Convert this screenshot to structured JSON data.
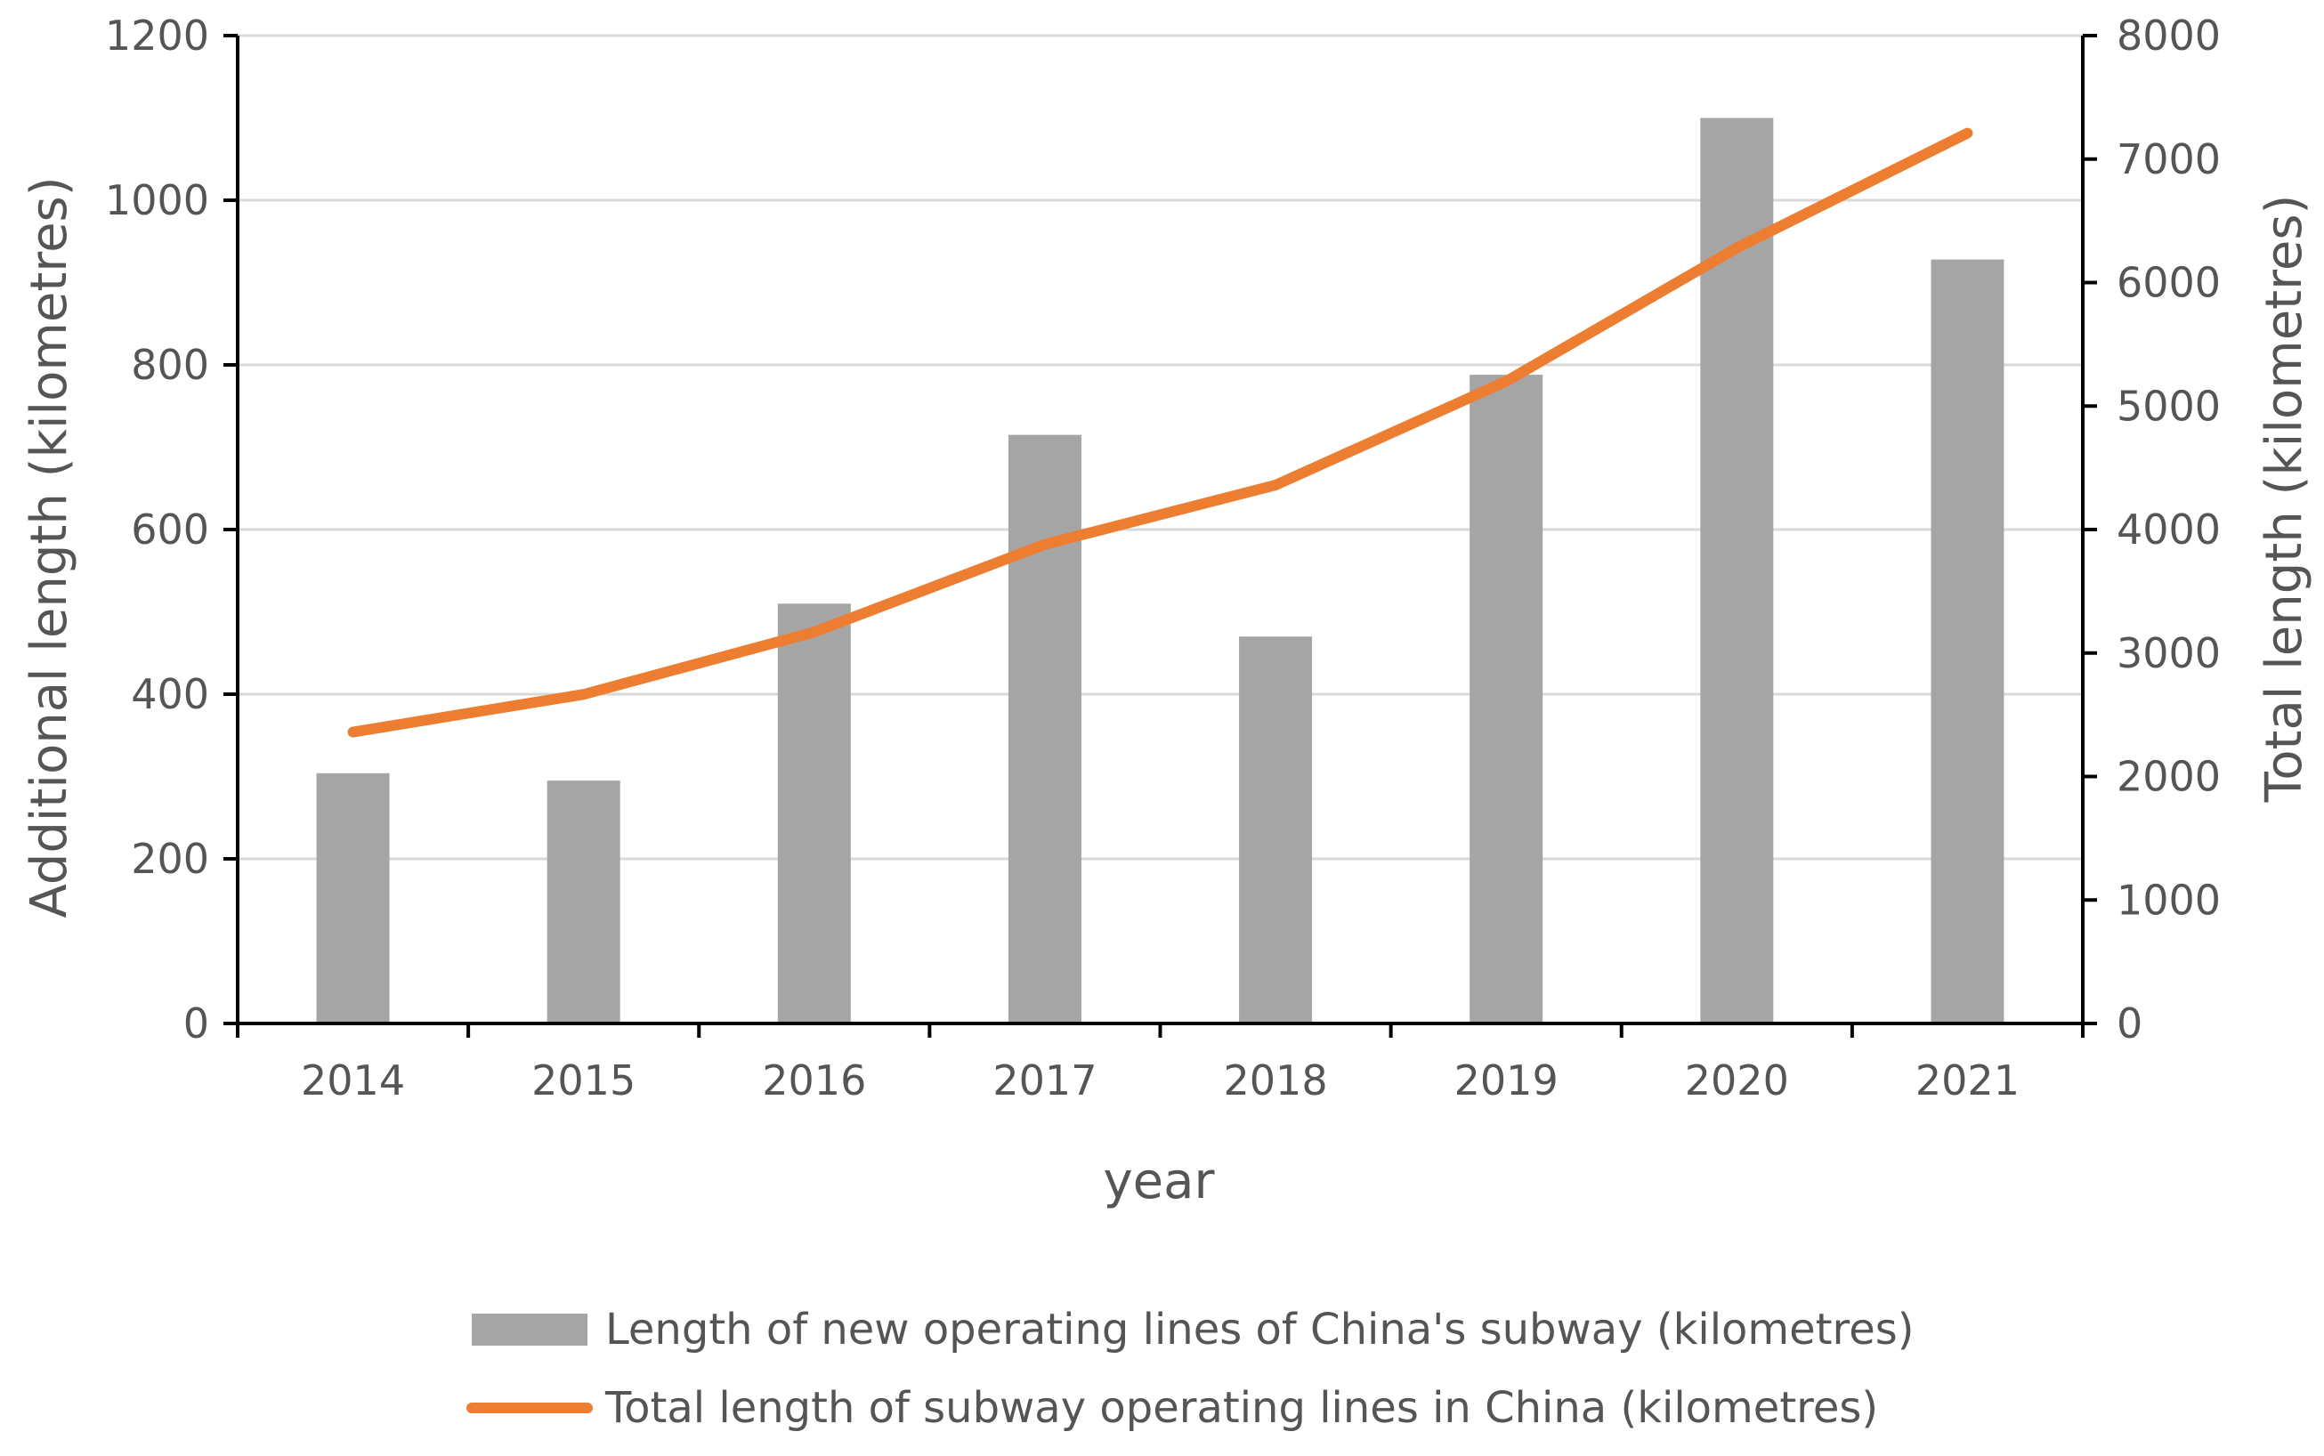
{
  "chart_data": {
    "type": "bar",
    "title": "",
    "xlabel": "year",
    "ylabel": "Additional length (kilometres)",
    "y2label": "Total length  (kilometres)",
    "categories": [
      "2014",
      "2015",
      "2016",
      "2017",
      "2018",
      "2019",
      "2020",
      "2021"
    ],
    "ylim": [
      0,
      1200
    ],
    "y2lim": [
      0,
      8000
    ],
    "yticks": [
      "0",
      "200",
      "400",
      "600",
      "800",
      "1000",
      "1200"
    ],
    "y2ticks": [
      "0",
      "1000",
      "2000",
      "3000",
      "4000",
      "5000",
      "6000",
      "7000",
      "8000"
    ],
    "grid": true,
    "legend_position": "bottom",
    "series": [
      {
        "name": "Length of new operating lines of China's subway (kilometres)",
        "type": "bar",
        "axis": "left",
        "color": "#a5a5a5",
        "values": [
          304,
          295,
          510,
          715,
          470,
          788,
          1100,
          928
        ]
      },
      {
        "name": "Total length of subway operating lines in China (kilometres)",
        "type": "line",
        "axis": "right",
        "color": "#ed7d31",
        "values": [
          2360,
          2665,
          3170,
          3880,
          4360,
          5200,
          6280,
          7210
        ]
      }
    ]
  }
}
